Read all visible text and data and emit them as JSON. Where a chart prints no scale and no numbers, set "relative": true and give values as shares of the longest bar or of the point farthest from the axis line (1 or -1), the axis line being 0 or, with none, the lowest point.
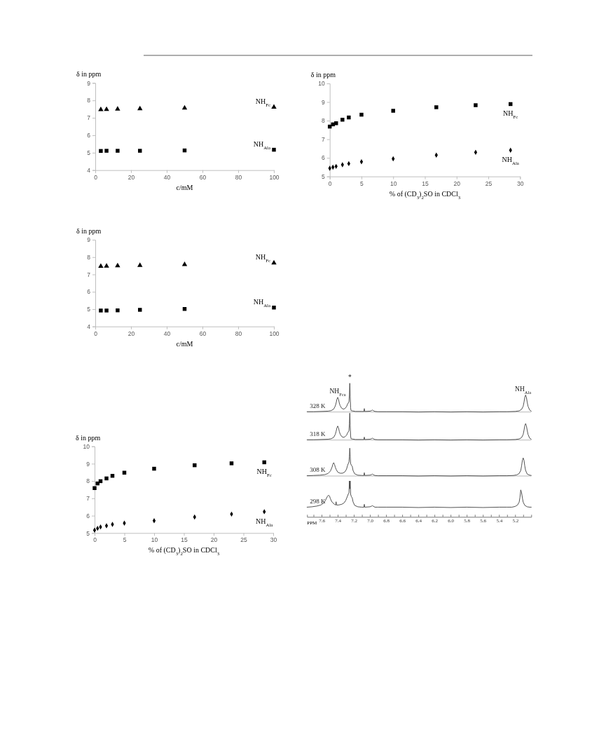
{
  "chart_data": [
    {
      "type": "scatter",
      "ylabel": "δ in ppm",
      "xlabel": "c/mM",
      "xlim": [
        0,
        100
      ],
      "xticks": [
        0,
        20,
        40,
        60,
        80,
        100
      ],
      "ylim": [
        4,
        9
      ],
      "yticks": [
        4,
        5,
        6,
        7,
        8,
        9
      ],
      "series": [
        {
          "name": "NH$_{Fc}$",
          "color": "#000000",
          "marker": "triangle",
          "x": [
            3.1,
            6.3,
            12.5,
            25,
            50,
            100
          ],
          "values": [
            7.47,
            7.48,
            7.5,
            7.52,
            7.56,
            7.61
          ]
        },
        {
          "name": "NH$_{Ala}$",
          "color": "#000000",
          "marker": "square",
          "x": [
            3.1,
            6.3,
            12.5,
            25,
            50,
            100
          ],
          "values": [
            5.1,
            5.11,
            5.11,
            5.11,
            5.13,
            5.17
          ]
        }
      ]
    },
    {
      "type": "scatter",
      "ylabel": "δ in ppm",
      "xlabel": "% of (CD$_{3}$)$_{2}$SO in CDCl$_{3}$",
      "xlim": [
        0,
        30
      ],
      "xticks": [
        0,
        5,
        10,
        15,
        20,
        25,
        30
      ],
      "ylim": [
        5,
        10
      ],
      "yticks": [
        5,
        6,
        7,
        8,
        9,
        10
      ],
      "series": [
        {
          "name": "NH$_{Fc}$",
          "color": "#000000",
          "marker": "square",
          "x": [
            0,
            0.5,
            1,
            2,
            3,
            5,
            10,
            16.8,
            23,
            28.5
          ],
          "values": [
            7.68,
            7.8,
            7.86,
            8.05,
            8.17,
            8.32,
            8.53,
            8.72,
            8.83,
            8.89
          ]
        },
        {
          "name": "NH$_{Ala}$",
          "color": "#000000",
          "marker": "diamond",
          "x": [
            0,
            0.5,
            1,
            2,
            3,
            5,
            10,
            16.8,
            23,
            28.5
          ],
          "values": [
            5.44,
            5.5,
            5.54,
            5.63,
            5.69,
            5.79,
            5.95,
            6.15,
            6.3,
            6.41
          ]
        }
      ]
    },
    {
      "type": "scatter",
      "ylabel": "δ in ppm",
      "xlabel": "c/mM",
      "xlim": [
        0,
        100
      ],
      "xticks": [
        0,
        20,
        40,
        60,
        80,
        100
      ],
      "ylim": [
        4,
        9
      ],
      "yticks": [
        4,
        5,
        6,
        7,
        8,
        9
      ],
      "series": [
        {
          "name": "NH$_{Fc}$",
          "color": "#000000",
          "marker": "triangle",
          "x": [
            3.1,
            6.3,
            12.5,
            25,
            50,
            100
          ],
          "values": [
            7.47,
            7.48,
            7.5,
            7.52,
            7.57,
            7.66
          ]
        },
        {
          "name": "NH$_{Ala}$",
          "color": "#000000",
          "marker": "square",
          "x": [
            3.1,
            6.3,
            12.5,
            25,
            50,
            100
          ],
          "values": [
            4.92,
            4.92,
            4.93,
            4.96,
            5.01,
            5.09
          ]
        }
      ]
    },
    {
      "type": "scatter",
      "ylabel": "δ in ppm",
      "xlabel": "% of (CD$_{3}$)$_{2}$SO in CDCl$_{3}$",
      "xlim": [
        0,
        30
      ],
      "xticks": [
        0,
        5,
        10,
        15,
        20,
        25,
        30
      ],
      "ylim": [
        5,
        10
      ],
      "yticks": [
        5,
        6,
        7,
        8,
        9,
        10
      ],
      "series": [
        {
          "name": "NH$_{Fc}$",
          "color": "#000000",
          "marker": "square",
          "x": [
            0,
            0.5,
            1,
            2,
            3,
            5,
            10,
            16.8,
            23,
            28.5
          ],
          "values": [
            7.59,
            7.86,
            7.99,
            8.15,
            8.3,
            8.48,
            8.71,
            8.91,
            9.02,
            9.08
          ]
        },
        {
          "name": "NH$_{Ala}$",
          "color": "#000000",
          "marker": "diamond",
          "x": [
            0,
            0.5,
            1,
            2,
            3,
            5,
            10,
            16.8,
            23,
            28.5
          ],
          "values": [
            5.16,
            5.27,
            5.35,
            5.42,
            5.5,
            5.57,
            5.71,
            5.92,
            6.09,
            6.23
          ]
        }
      ]
    },
    {
      "type": "line",
      "relative": true,
      "xlim": [
        7.78,
        5.0
      ],
      "tick_labels": false,
      "annotations": [
        {
          "text": "NH$_{Fca}$",
          "x": 7.4,
          "y": 0.51
        },
        {
          "text": "*",
          "x": 7.25,
          "y": 1
        },
        {
          "text": "NH$_{Ala}$",
          "x": 5.07,
          "y": 0.59
        }
      ],
      "series": [
        {
          "name": "328 K",
          "color": "#404040",
          "x": [
            7.78,
            7.7,
            7.6,
            7.52,
            7.48,
            7.45,
            7.43,
            7.42,
            7.41,
            7.4,
            7.39,
            7.38,
            7.37,
            7.35,
            7.33,
            7.31,
            7.29,
            7.28,
            7.27,
            7.26,
            7.255,
            7.25,
            7.245,
            7.24,
            7.235,
            7.22,
            7.18,
            7.1,
            7.075,
            7.07,
            7.065,
            7.0,
            6.98,
            6.97,
            6.96,
            6.94,
            6.9,
            6.8,
            6.6,
            6.4,
            6.2,
            6.0,
            5.8,
            5.6,
            5.4,
            5.3,
            5.2,
            5.15,
            5.12,
            5.1,
            5.09,
            5.08,
            5.07,
            5.06,
            5.05,
            5.04,
            5.02,
            5.0
          ],
          "values": [
            0.01,
            0.01,
            0.02,
            0.03,
            0.05,
            0.1,
            0.21,
            0.31,
            0.44,
            0.51,
            0.44,
            0.31,
            0.22,
            0.13,
            0.1,
            0.12,
            0.19,
            0.26,
            0.31,
            0.36,
            0.6,
            1,
            0.55,
            0.15,
            0.05,
            0.04,
            0.02,
            0.02,
            0.02,
            0.12,
            0.02,
            0.03,
            0.05,
            0.07,
            0.05,
            0.02,
            0.01,
            0.01,
            0.01,
            0,
            0.01,
            0,
            0.01,
            0,
            0.01,
            0.01,
            0.02,
            0.04,
            0.09,
            0.2,
            0.34,
            0.51,
            0.59,
            0.51,
            0.34,
            0.2,
            0.07,
            0.03
          ]
        }
      ]
    },
    {
      "type": "line",
      "relative": true,
      "xlim": [
        7.78,
        5.0
      ],
      "tick_labels": false,
      "series": [
        {
          "name": "318 K",
          "color": "#404040",
          "x": [
            7.78,
            7.7,
            7.6,
            7.52,
            7.48,
            7.45,
            7.43,
            7.42,
            7.41,
            7.4,
            7.39,
            7.38,
            7.37,
            7.35,
            7.33,
            7.31,
            7.29,
            7.28,
            7.27,
            7.26,
            7.255,
            7.25,
            7.245,
            7.24,
            7.235,
            7.22,
            7.18,
            7.1,
            7.075,
            7.07,
            7.065,
            7.0,
            6.98,
            6.97,
            6.96,
            6.94,
            6.9,
            6.8,
            6.6,
            6.4,
            6.2,
            6.0,
            5.8,
            5.6,
            5.4,
            5.3,
            5.2,
            5.15,
            5.12,
            5.1,
            5.09,
            5.08,
            5.07,
            5.06,
            5.05,
            5.04,
            5.02,
            5.0
          ],
          "values": [
            0.01,
            0.01,
            0.02,
            0.03,
            0.05,
            0.1,
            0.21,
            0.32,
            0.45,
            0.52,
            0.45,
            0.32,
            0.22,
            0.13,
            0.1,
            0.12,
            0.18,
            0.25,
            0.3,
            0.35,
            0.6,
            1,
            0.55,
            0.15,
            0.05,
            0.04,
            0.02,
            0.02,
            0.02,
            0.11,
            0.02,
            0.03,
            0.05,
            0.07,
            0.05,
            0.02,
            0.01,
            0.01,
            0.01,
            0,
            0.01,
            0,
            0.01,
            0,
            0.01,
            0.01,
            0.02,
            0.04,
            0.09,
            0.21,
            0.36,
            0.53,
            0.61,
            0.53,
            0.36,
            0.21,
            0.07,
            0.03
          ]
        }
      ]
    },
    {
      "type": "line",
      "relative": true,
      "xlim": [
        7.78,
        5.0
      ],
      "tick_labels": false,
      "series": [
        {
          "name": "308 K",
          "color": "#404040",
          "x": [
            7.78,
            7.7,
            7.62,
            7.56,
            7.52,
            7.49,
            7.47,
            7.46,
            7.45,
            7.44,
            7.43,
            7.42,
            7.4,
            7.37,
            7.34,
            7.31,
            7.29,
            7.28,
            7.27,
            7.26,
            7.255,
            7.25,
            7.245,
            7.24,
            7.23,
            7.22,
            7.21,
            7.19,
            7.15,
            7.1,
            7.075,
            7.07,
            7.065,
            7.0,
            6.98,
            6.97,
            6.96,
            6.94,
            6.9,
            6.8,
            6.6,
            6.4,
            6.2,
            6.0,
            5.8,
            5.6,
            5.4,
            5.3,
            5.22,
            5.18,
            5.15,
            5.13,
            5.12,
            5.11,
            5.1,
            5.09,
            5.08,
            5.07,
            5.05,
            5.02,
            5.0
          ],
          "values": [
            0.01,
            0.02,
            0.03,
            0.05,
            0.09,
            0.18,
            0.32,
            0.42,
            0.48,
            0.42,
            0.32,
            0.24,
            0.14,
            0.1,
            0.1,
            0.15,
            0.25,
            0.36,
            0.44,
            0.5,
            0.7,
            1,
            0.7,
            0.45,
            0.38,
            0.35,
            0.2,
            0.08,
            0.03,
            0.02,
            0.02,
            0.12,
            0.02,
            0.03,
            0.05,
            0.07,
            0.05,
            0.02,
            0.01,
            0.01,
            0.01,
            0,
            0.01,
            0,
            0.01,
            0,
            0.01,
            0.01,
            0.02,
            0.04,
            0.09,
            0.2,
            0.36,
            0.56,
            0.65,
            0.56,
            0.36,
            0.2,
            0.07,
            0.03,
            0.02
          ]
        }
      ]
    },
    {
      "type": "line",
      "relative": true,
      "xlim": [
        7.78,
        5.0
      ],
      "tick_labels": "x",
      "xlabel": "PPM",
      "xticks": [
        {
          "value": 7.7,
          "label": null
        },
        7.6,
        {
          "value": 7.5,
          "label": null
        },
        7.4,
        {
          "value": 7.3,
          "label": null
        },
        7.2,
        {
          "value": 7.1,
          "label": null
        },
        {
          "value": 7,
          "label": "7.0"
        },
        {
          "value": 6.9,
          "label": null
        },
        6.8,
        {
          "value": 6.7,
          "label": null
        },
        6.6,
        {
          "value": 6.5,
          "label": null
        },
        6.4,
        {
          "value": 6.3,
          "label": null
        },
        6.2,
        {
          "value": 6.1,
          "label": null
        },
        {
          "value": 6,
          "label": "6.0"
        },
        {
          "value": 5.9,
          "label": null
        },
        5.8,
        {
          "value": 5.7,
          "label": null
        },
        5.6,
        {
          "value": 5.5,
          "label": null
        },
        5.4,
        {
          "value": 5.3,
          "label": null
        },
        5.2,
        {
          "value": 5.1,
          "label": null
        }
      ],
      "series": [
        {
          "name": "298 K",
          "color": "#404040",
          "x": [
            7.78,
            7.72,
            7.66,
            7.61,
            7.57,
            7.55,
            7.53,
            7.52,
            7.51,
            7.5,
            7.49,
            7.47,
            7.44,
            7.425,
            7.42,
            7.415,
            7.39,
            7.35,
            7.32,
            7.3,
            7.28,
            7.27,
            7.26,
            7.255,
            7.25,
            7.245,
            7.24,
            7.23,
            7.22,
            7.21,
            7.19,
            7.15,
            7.1,
            7.075,
            7.07,
            7.065,
            7.0,
            6.98,
            6.97,
            6.96,
            6.94,
            6.9,
            6.8,
            6.6,
            6.4,
            6.2,
            6.0,
            5.8,
            5.6,
            5.4,
            5.3,
            5.24,
            5.2,
            5.17,
            5.15,
            5.14,
            5.13,
            5.12,
            5.11,
            5.1,
            5.08,
            5.05,
            5.02,
            5.0
          ],
          "values": [
            0.27,
            0.28,
            0.3,
            0.33,
            0.39,
            0.47,
            0.56,
            0.59,
            0.6,
            0.57,
            0.5,
            0.41,
            0.35,
            0.33,
            0.42,
            0.33,
            0.33,
            0.35,
            0.39,
            0.46,
            0.57,
            0.63,
            0.67,
            1,
            0.78,
            1,
            0.63,
            0.56,
            0.53,
            0.42,
            0.32,
            0.28,
            0.27,
            0.27,
            0.35,
            0.27,
            0.28,
            0.3,
            0.31,
            0.3,
            0.27,
            0.27,
            0.27,
            0.27,
            0.26,
            0.27,
            0.26,
            0.27,
            0.26,
            0.27,
            0.27,
            0.27,
            0.29,
            0.33,
            0.41,
            0.54,
            0.75,
            0.67,
            0.53,
            0.41,
            0.32,
            0.28,
            0.27,
            0.27
          ]
        }
      ]
    }
  ]
}
